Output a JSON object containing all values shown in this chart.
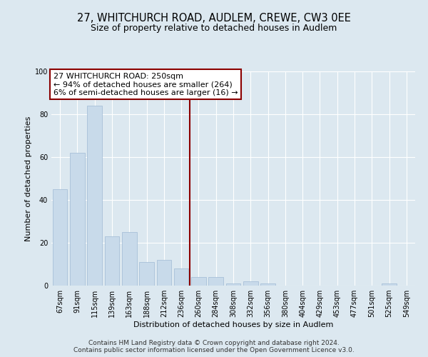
{
  "title": "27, WHITCHURCH ROAD, AUDLEM, CREWE, CW3 0EE",
  "subtitle": "Size of property relative to detached houses in Audlem",
  "xlabel": "Distribution of detached houses by size in Audlem",
  "ylabel": "Number of detached properties",
  "bar_labels": [
    "67sqm",
    "91sqm",
    "115sqm",
    "139sqm",
    "163sqm",
    "188sqm",
    "212sqm",
    "236sqm",
    "260sqm",
    "284sqm",
    "308sqm",
    "332sqm",
    "356sqm",
    "380sqm",
    "404sqm",
    "429sqm",
    "453sqm",
    "477sqm",
    "501sqm",
    "525sqm",
    "549sqm"
  ],
  "bar_values": [
    45,
    62,
    84,
    23,
    25,
    11,
    12,
    8,
    4,
    4,
    1,
    2,
    1,
    0,
    0,
    0,
    0,
    0,
    0,
    1,
    0
  ],
  "bar_color": "#c8daea",
  "bar_edge_color": "#a8c0d8",
  "vline_color": "#8b0000",
  "vline_pos": 7.5,
  "annotation_title": "27 WHITCHURCH ROAD: 250sqm",
  "annotation_line1": "← 94% of detached houses are smaller (264)",
  "annotation_line2": "6% of semi-detached houses are larger (16) →",
  "annotation_box_edge_color": "#8b0000",
  "ylim": [
    0,
    100
  ],
  "yticks": [
    0,
    20,
    40,
    60,
    80,
    100
  ],
  "footnote1": "Contains HM Land Registry data © Crown copyright and database right 2024.",
  "footnote2": "Contains public sector information licensed under the Open Government Licence v3.0.",
  "bg_color": "#dce8f0",
  "plot_bg_color": "#dce8f0",
  "grid_color": "#ffffff",
  "title_fontsize": 10.5,
  "subtitle_fontsize": 9,
  "label_fontsize": 8,
  "tick_fontsize": 7,
  "annotation_fontsize": 8,
  "footnote_fontsize": 6.5
}
